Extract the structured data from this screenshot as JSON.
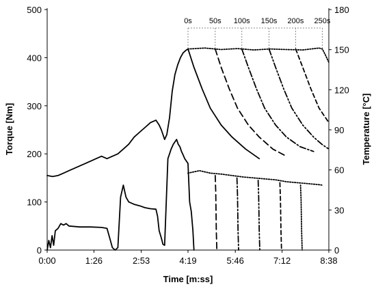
{
  "chart_data": {
    "type": "line",
    "xlabel": "Time [m:ss]",
    "ylabel": "Torque [Nm]",
    "y2label": "Temperature [°C]",
    "x_unit": "seconds",
    "xlim": [
      0,
      518
    ],
    "ylim": [
      0,
      500
    ],
    "y2lim": [
      0,
      180
    ],
    "x_ticks": [
      0,
      86,
      173,
      259,
      346,
      432,
      518
    ],
    "x_tick_labels": [
      "0:00",
      "1:26",
      "2:53",
      "4:19",
      "5:46",
      "7:12",
      "8:38"
    ],
    "y_ticks": [
      0,
      100,
      200,
      300,
      400,
      500
    ],
    "y2_ticks": [
      0,
      30,
      60,
      90,
      120,
      150,
      180
    ],
    "grid": false,
    "legend": "none",
    "annotations": {
      "labels": [
        "0s",
        "50s",
        "100s",
        "150s",
        "200s",
        "250s"
      ],
      "x": [
        259,
        309,
        358,
        408,
        457,
        506
      ]
    },
    "series": [
      {
        "axis": "right",
        "style": "solid",
        "x": [
          0,
          10,
          20,
          30,
          40,
          50,
          60,
          70,
          80,
          90,
          100,
          110,
          120,
          130,
          140,
          150,
          160,
          170,
          180,
          190,
          200,
          206,
          210,
          216,
          220,
          225,
          230,
          235,
          240,
          245,
          250,
          255,
          259
        ],
        "y": [
          55.8,
          55,
          55.8,
          57.6,
          59.4,
          61.2,
          63,
          64.8,
          66.6,
          68.4,
          70.2,
          68.4,
          70.2,
          72,
          75.6,
          79.2,
          84.6,
          88.2,
          91.8,
          95.4,
          97.2,
          93.6,
          90,
          82.8,
          86.4,
          99,
          118.8,
          131.4,
          138.6,
          144,
          147.6,
          149.4,
          150.5
        ]
      },
      {
        "axis": "right",
        "style": "dotted",
        "x": [
          259,
          290,
          320,
          350,
          380,
          410,
          440,
          470,
          500,
          506,
          512,
          518
        ],
        "y": [
          150.5,
          151.2,
          150.1,
          150.8,
          149.8,
          150.5,
          150.1,
          149.8,
          151.2,
          150.5,
          145.8,
          140.4
        ]
      },
      {
        "axis": "right",
        "style": "solid",
        "x": [
          259,
          270,
          285,
          300,
          320,
          340,
          365,
          390
        ],
        "y": [
          150.5,
          136.8,
          120.6,
          106.2,
          93.6,
          84.6,
          75.6,
          68.4
        ]
      },
      {
        "axis": "right",
        "style": "long-dash",
        "x": [
          309,
          320,
          335,
          350,
          370,
          390,
          415,
          440
        ],
        "y": [
          150.5,
          136.8,
          120.6,
          106.2,
          93.6,
          84.6,
          75.6,
          70.2
        ]
      },
      {
        "axis": "right",
        "style": "dash-dot",
        "x": [
          358,
          370,
          385,
          400,
          420,
          440,
          465,
          490
        ],
        "y": [
          150.5,
          136.8,
          120.6,
          106.2,
          93.6,
          84.6,
          77.4,
          73.8
        ]
      },
      {
        "axis": "right",
        "style": "dash-dot-dot",
        "x": [
          408,
          420,
          435,
          450,
          470,
          490,
          505,
          518
        ],
        "y": [
          150.5,
          136.8,
          120.6,
          106.2,
          93.6,
          84.6,
          79.2,
          75.6
        ]
      },
      {
        "axis": "right",
        "style": "dashed",
        "x": [
          457,
          470,
          485,
          500,
          518
        ],
        "y": [
          150.5,
          136.8,
          120.6,
          106.2,
          95.4
        ]
      },
      {
        "axis": "left",
        "style": "solid",
        "x": [
          0,
          3,
          6,
          9,
          12,
          15,
          20,
          25,
          30,
          35,
          40,
          60,
          80,
          100,
          110,
          115,
          120,
          125,
          130,
          135,
          140,
          145,
          150,
          160,
          170,
          180,
          190,
          200,
          203,
          206,
          210,
          213,
          216,
          219,
          222,
          225,
          228,
          232,
          235,
          238,
          241,
          244,
          247,
          250,
          253,
          256,
          259,
          262,
          265,
          268,
          270
        ],
        "y": [
          0,
          20,
          5,
          30,
          10,
          40,
          45,
          55,
          52,
          55,
          50,
          48,
          48,
          47,
          45,
          25,
          5,
          0,
          5,
          110,
          135,
          110,
          100,
          95,
          92,
          88,
          86,
          85,
          70,
          40,
          25,
          12,
          10,
          100,
          190,
          200,
          210,
          220,
          225,
          230,
          220,
          215,
          205,
          198,
          190,
          185,
          180,
          100,
          80,
          40,
          0
        ]
      },
      {
        "axis": "left",
        "style": "dotted",
        "x": [
          259,
          280,
          300,
          320,
          340,
          360,
          380,
          400,
          420,
          440,
          460,
          480,
          500,
          506
        ],
        "y": [
          160,
          165,
          160,
          158,
          155,
          152,
          150,
          148,
          146,
          142,
          140,
          138,
          136,
          135
        ]
      },
      {
        "axis": "left",
        "style": "long-dash",
        "x": [
          309,
          310,
          311,
          312
        ],
        "y": [
          155,
          120,
          40,
          0
        ]
      },
      {
        "axis": "left",
        "style": "dash-dot",
        "x": [
          349,
          350,
          351,
          352
        ],
        "y": [
          150,
          115,
          40,
          0
        ]
      },
      {
        "axis": "left",
        "style": "dash-dot-dot",
        "x": [
          388,
          389,
          390,
          391
        ],
        "y": [
          145,
          110,
          40,
          0
        ]
      },
      {
        "axis": "left",
        "style": "dashed",
        "x": [
          428,
          429,
          430,
          431
        ],
        "y": [
          140,
          108,
          40,
          0
        ]
      },
      {
        "axis": "left",
        "style": "dotted",
        "x": [
          466,
          467,
          468,
          469
        ],
        "y": [
          135,
          105,
          40,
          0
        ]
      }
    ]
  }
}
